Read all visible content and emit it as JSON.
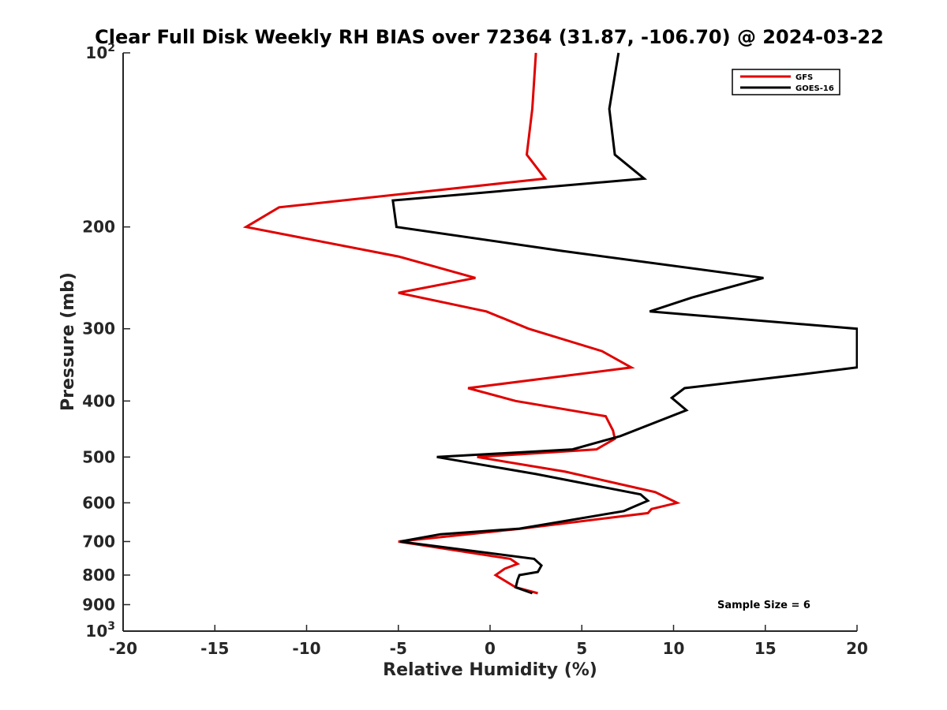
{
  "chart_data": {
    "type": "line",
    "title": "Clear Full Disk Weekly RH BIAS over 72364 (31.87, -106.70) @ 2024-03-22",
    "xlabel": "Relative Humidity (%)",
    "ylabel": "Pressure (mb)",
    "xlim": [
      -20,
      20
    ],
    "ylim": [
      100,
      1000
    ],
    "y_scale": "log",
    "y_reversed": true,
    "x_ticks": [
      "-20",
      "-15",
      "-10",
      "-5",
      "0",
      "5",
      "10",
      "15",
      "20"
    ],
    "y_ticks": [
      {
        "value": 100,
        "base": "10",
        "exp": "2"
      },
      {
        "value": 200,
        "label": "200"
      },
      {
        "value": 300,
        "label": "300"
      },
      {
        "value": 400,
        "label": "400"
      },
      {
        "value": 500,
        "label": "500"
      },
      {
        "value": 600,
        "label": "600"
      },
      {
        "value": 700,
        "label": "700"
      },
      {
        "value": 800,
        "label": "800"
      },
      {
        "value": 900,
        "label": "900"
      },
      {
        "value": 1000,
        "base": "10",
        "exp": "3"
      }
    ],
    "legend_position": "top-right",
    "grid": false,
    "annotation": "Sample Size = 6",
    "series": [
      {
        "name": "GFS",
        "color": "#e00000",
        "points": [
          [
            2.5,
            100
          ],
          [
            2.3,
            125
          ],
          [
            2.0,
            150
          ],
          [
            3.0,
            165
          ],
          [
            -11.5,
            185
          ],
          [
            -13.3,
            200
          ],
          [
            -5.0,
            225
          ],
          [
            -0.8,
            245
          ],
          [
            -5.0,
            260
          ],
          [
            -0.2,
            280
          ],
          [
            2.1,
            300
          ],
          [
            6.1,
            328
          ],
          [
            7.7,
            350
          ],
          [
            -1.2,
            380
          ],
          [
            1.4,
            400
          ],
          [
            6.3,
            425
          ],
          [
            6.7,
            450
          ],
          [
            6.8,
            465
          ],
          [
            5.8,
            485
          ],
          [
            -0.7,
            500
          ],
          [
            4.1,
            530
          ],
          [
            9.0,
            575
          ],
          [
            10.2,
            600
          ],
          [
            8.8,
            615
          ],
          [
            8.6,
            625
          ],
          [
            1.7,
            665
          ],
          [
            -5.0,
            700
          ],
          [
            1.1,
            750
          ],
          [
            1.5,
            765
          ],
          [
            0.8,
            780
          ],
          [
            0.3,
            800
          ],
          [
            1.4,
            840
          ],
          [
            2.6,
            860
          ]
        ]
      },
      {
        "name": "GOES-16",
        "color": "#000000",
        "points": [
          [
            7.0,
            100
          ],
          [
            6.5,
            125
          ],
          [
            6.8,
            150
          ],
          [
            8.4,
            165
          ],
          [
            -5.3,
            180
          ],
          [
            -5.1,
            200
          ],
          [
            3.9,
            220
          ],
          [
            14.9,
            245
          ],
          [
            11.0,
            265
          ],
          [
            8.7,
            280
          ],
          [
            20.0,
            300
          ],
          [
            20.0,
            350
          ],
          [
            16.9,
            360
          ],
          [
            10.6,
            380
          ],
          [
            9.9,
            395
          ],
          [
            10.7,
            415
          ],
          [
            7.1,
            460
          ],
          [
            4.5,
            485
          ],
          [
            -2.9,
            500
          ],
          [
            2.5,
            535
          ],
          [
            8.2,
            580
          ],
          [
            8.6,
            595
          ],
          [
            7.8,
            610
          ],
          [
            7.3,
            620
          ],
          [
            1.6,
            665
          ],
          [
            -2.7,
            680
          ],
          [
            -4.9,
            700
          ],
          [
            2.4,
            750
          ],
          [
            2.8,
            770
          ],
          [
            2.6,
            790
          ],
          [
            1.6,
            800
          ],
          [
            1.5,
            815
          ],
          [
            1.4,
            840
          ],
          [
            2.3,
            860
          ]
        ]
      }
    ]
  }
}
